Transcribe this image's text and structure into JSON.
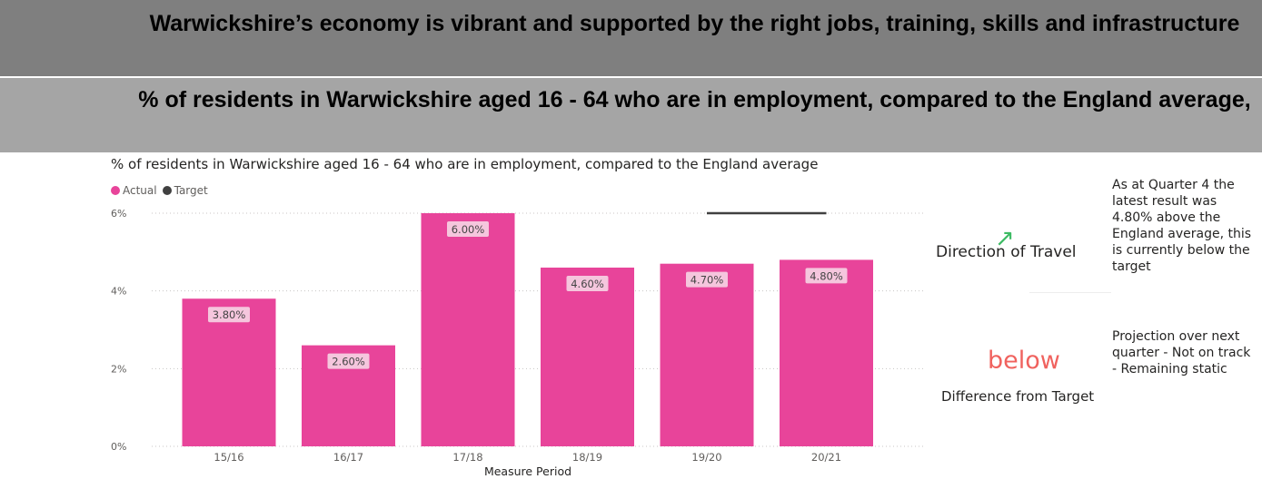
{
  "banner": {
    "heading": "Warwickshire’s economy is vibrant and supported by the right jobs, training, skills and infrastructure",
    "subheading": "% of residents in Warwickshire aged 16 - 64 who are in employment, compared to the England average,"
  },
  "chart_data": {
    "type": "bar",
    "title": "% of residents in Warwickshire aged 16 - 64 who are in employment, compared to the England average",
    "xlabel": "Measure Period",
    "ylabel": "",
    "categories": [
      "15/16",
      "16/17",
      "17/18",
      "18/19",
      "19/20",
      "20/21"
    ],
    "series": [
      {
        "name": "Actual",
        "values": [
          3.8,
          2.6,
          6.0,
          4.6,
          4.7,
          4.8
        ],
        "labels": [
          "3.80%",
          "2.60%",
          "6.00%",
          "4.60%",
          "4.70%",
          "4.80%"
        ]
      },
      {
        "name": "Target",
        "values": [
          null,
          null,
          null,
          null,
          6.0,
          6.0
        ]
      }
    ],
    "yticks": [
      "0%",
      "2%",
      "4%",
      "6%"
    ],
    "ylim": [
      0,
      6
    ],
    "grid": true,
    "legend": "top-left",
    "colors": {
      "actual": "#e8449a",
      "target": "#404040"
    }
  },
  "kpi": {
    "direction_label": "Direction of Travel",
    "direction_icon": "arrow-up-right-icon",
    "difference_value": "below",
    "difference_label": "Difference from Target"
  },
  "notes": {
    "status": "As at Quarter 4 the latest result was 4.80% above the England average, this is currently below the target",
    "projection": "Projection over next quarter - Not on track - Remaining static"
  }
}
